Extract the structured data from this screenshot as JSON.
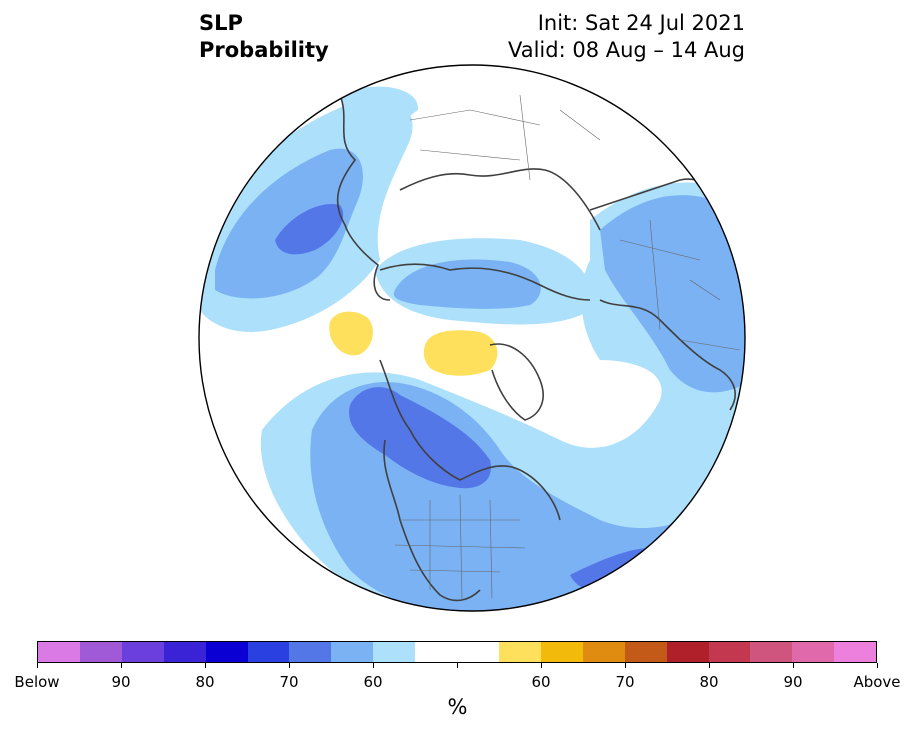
{
  "title": {
    "left_line1": "SLP",
    "left_line2": "Probability",
    "init": "Init: Sat 24 Jul 2021",
    "valid": "Valid: 08 Aug – 14 Aug"
  },
  "colorbar": {
    "unit": "%",
    "colors": [
      "#d97ae5",
      "#a05ad8",
      "#6b3fde",
      "#3a22d6",
      "#0b00d4",
      "#2b40e0",
      "#5477e8",
      "#7ab2f4",
      "#ade0fb",
      "#ffffff",
      "#ffffff",
      "#ffe05c",
      "#f2bb0b",
      "#e08c10",
      "#c45a18",
      "#b0202a",
      "#c3384f",
      "#d0557e",
      "#df69aa",
      "#ec80dc"
    ],
    "labels": [
      "Below",
      "90",
      "80",
      "70",
      "60",
      "60",
      "70",
      "80",
      "90",
      "Above"
    ]
  },
  "map_colors": {
    "outline": "#000000",
    "coast": "#404040",
    "blue_light": "#ade0fb",
    "blue_mid": "#7ab2f4",
    "blue_dark": "#5477e8",
    "yellow": "#ffe05c"
  }
}
